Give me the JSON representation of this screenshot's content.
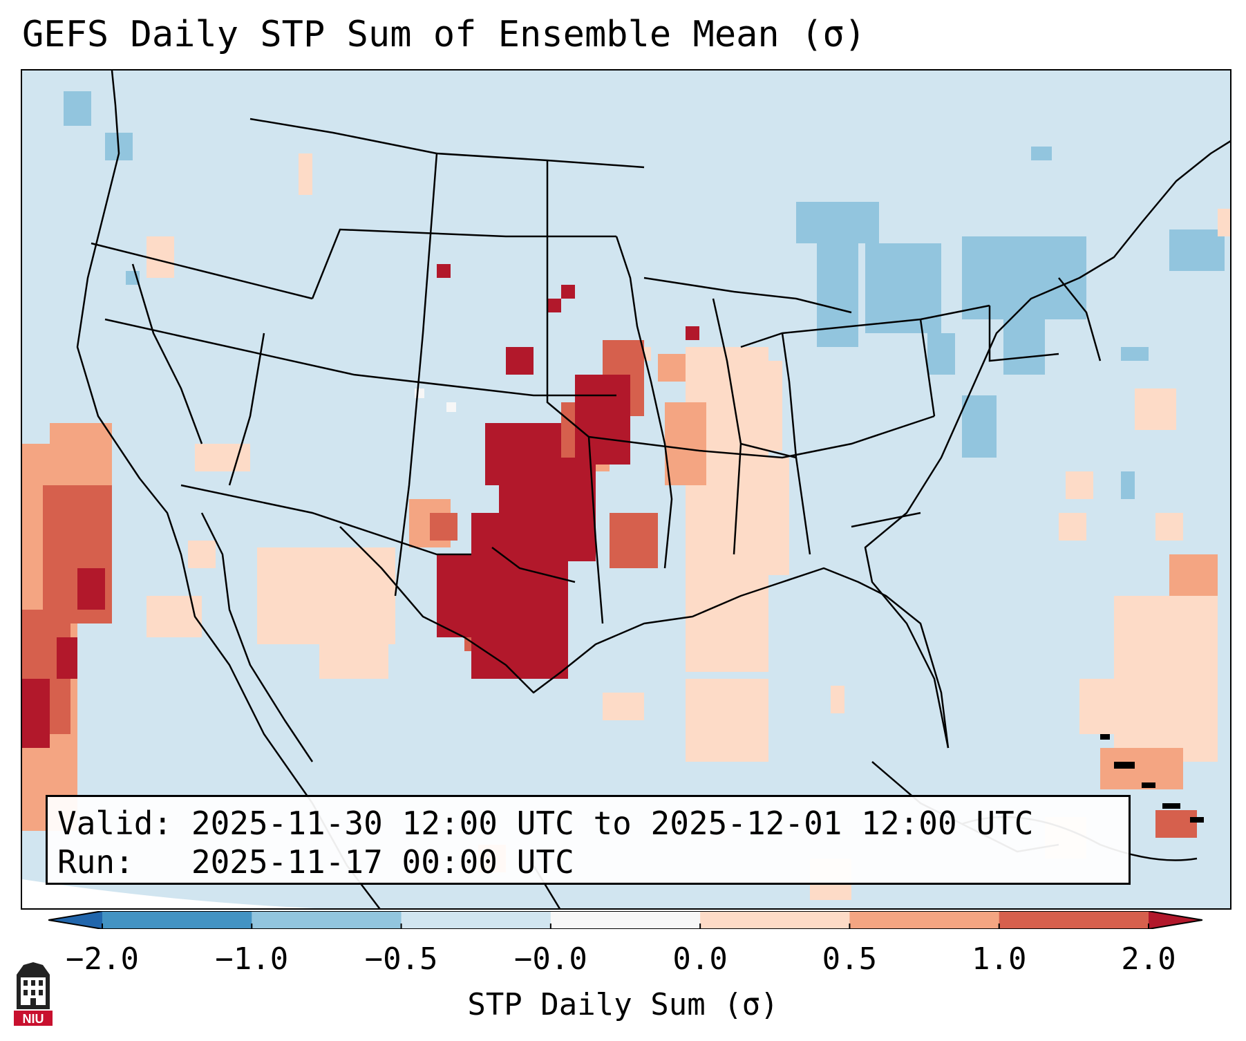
{
  "title": "GEFS Daily STP Sum of Ensemble Mean (σ)",
  "info": {
    "valid_label": "Valid:",
    "valid_value": "2025-11-30 12:00 UTC to 2025-12-01 12:00 UTC",
    "run_label": "Run:",
    "run_value": "2025-11-17 00:00 UTC"
  },
  "colorbar": {
    "label": "STP Daily Sum (σ)",
    "ticks": [
      "−2.0",
      "−1.0",
      "−0.5",
      "−0.0",
      "0.0",
      "0.5",
      "1.0",
      "2.0"
    ],
    "bins": [
      {
        "from": "-inf",
        "to": -2.0,
        "color": "#2166ac"
      },
      {
        "from": -2.0,
        "to": -1.0,
        "color": "#4393c3"
      },
      {
        "from": -1.0,
        "to": -0.5,
        "color": "#92c5de"
      },
      {
        "from": -0.5,
        "to": -0.0,
        "color": "#d1e5f0"
      },
      {
        "from": -0.0,
        "to": 0.0,
        "color": "#f7f7f7"
      },
      {
        "from": 0.0,
        "to": 0.5,
        "color": "#fddbc7"
      },
      {
        "from": 0.5,
        "to": 1.0,
        "color": "#f4a582"
      },
      {
        "from": 1.0,
        "to": 2.0,
        "color": "#d6604d"
      },
      {
        "from": 2.0,
        "to": "inf",
        "color": "#b2182b"
      }
    ]
  },
  "logo": {
    "text": "NIU",
    "color": "#c8102e"
  }
}
